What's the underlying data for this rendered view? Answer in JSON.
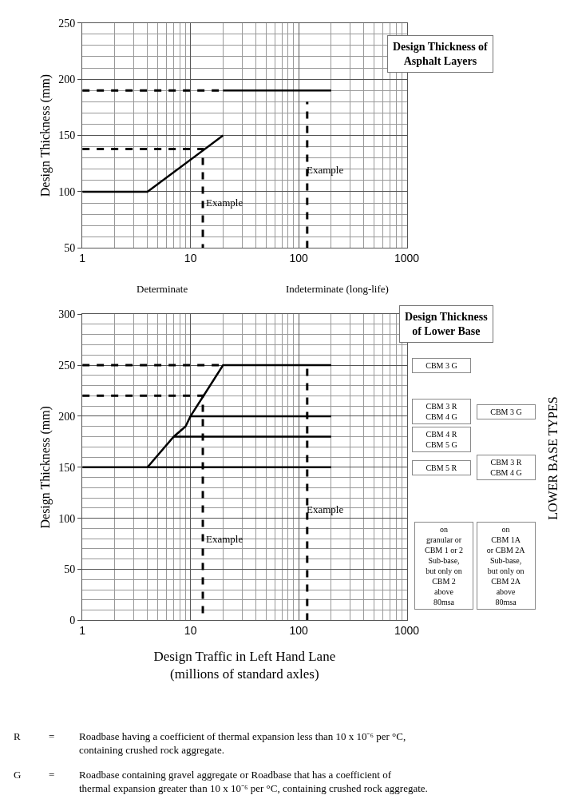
{
  "chart_data": [
    {
      "type": "line",
      "title": "Design Thickness of\nAsphalt Layers",
      "ylabel": "Design Thickness (mm)",
      "log": "x",
      "grid": true,
      "marker": "none",
      "xlim": [
        1,
        1000
      ],
      "xticks": [
        1,
        10,
        100,
        1000
      ],
      "ylim": [
        50,
        250
      ],
      "yticks": [
        50,
        100,
        150,
        200,
        250
      ],
      "series": [
        {
          "color": "#000000",
          "line_style": "solid",
          "x": [
            1,
            4,
            20
          ],
          "values": [
            100,
            100,
            150
          ]
        },
        {
          "color": "#000000",
          "line_style": "solid",
          "x": [
            20,
            200
          ],
          "values": [
            190,
            190
          ]
        },
        {
          "color": "#000000",
          "line_style": "dashed",
          "x": [
            1,
            20
          ],
          "values": [
            190,
            190
          ]
        },
        {
          "color": "#000000",
          "line_style": "dashed",
          "x": [
            1,
            13,
            13
          ],
          "values": [
            138,
            138,
            50
          ]
        },
        {
          "color": "#000000",
          "line_style": "dashed",
          "x": [
            120,
            120
          ],
          "values": [
            50,
            180
          ]
        }
      ],
      "annotations": [
        "Example",
        "Example",
        "Determinate",
        "Indeterminate (long-life)"
      ]
    },
    {
      "type": "line",
      "title": "Design Thickness\nof Lower Base",
      "ylabel": "Design Thickness (mm)",
      "xlabel": "Design Traffic in Left Hand Lane\n(millions of standard axles)",
      "log": "x",
      "grid": true,
      "marker": "none",
      "xlim": [
        1,
        1000
      ],
      "xticks": [
        1,
        10,
        100,
        1000
      ],
      "ylim": [
        0,
        300
      ],
      "yticks": [
        0,
        50,
        100,
        150,
        200,
        250,
        300
      ],
      "series": [
        {
          "color": "#000000",
          "line_style": "solid",
          "x": [
            1,
            4,
            7,
            9,
            10,
            20,
            200
          ],
          "values": [
            150,
            150,
            180,
            190,
            200,
            250,
            250
          ]
        },
        {
          "color": "#000000",
          "line_style": "solid",
          "x": [
            10,
            200
          ],
          "values": [
            200,
            200
          ]
        },
        {
          "color": "#000000",
          "line_style": "solid",
          "x": [
            7,
            200
          ],
          "values": [
            180,
            180
          ]
        },
        {
          "color": "#000000",
          "line_style": "solid",
          "x": [
            4,
            200
          ],
          "values": [
            150,
            150
          ]
        },
        {
          "color": "#000000",
          "line_style": "dashed",
          "x": [
            1,
            20
          ],
          "values": [
            250,
            250
          ]
        },
        {
          "color": "#000000",
          "line_style": "dashed",
          "x": [
            1,
            13,
            13
          ],
          "values": [
            220,
            220,
            0
          ]
        },
        {
          "color": "#000000",
          "line_style": "dashed",
          "x": [
            120,
            120
          ],
          "values": [
            0,
            250
          ]
        }
      ],
      "annotations": [
        "Example",
        "Example",
        "CBM 3 G",
        "CBM 3 R\nCBM 4 G",
        "CBM 4 R\nCBM 5 G",
        "CBM 5 R",
        "CBM 3 G",
        "CBM 3 R\nCBM 4 G",
        "on\ngranular or\nCBM 1 or 2\nSub-base,\nbut only on\nCBM 2\nabove\n80msa",
        "on\nCBM 1A\nor CBM 2A\nSub-base,\nbut only on\nCBM 2A\nabove\n80msa",
        "LOWER BASE TYPES",
        "R",
        "=",
        "Roadbase having a coefficient of thermal expansion less than 10 x 10⁻⁶ per °C,\ncontaining crushed rock aggregate.",
        "G",
        "=",
        "Roadbase containing gravel aggregate or Roadbase that has a coefficient of\nthermal expansion greater than 10 x 10⁻⁶ per °C, containing crushed rock aggregate."
      ]
    }
  ]
}
